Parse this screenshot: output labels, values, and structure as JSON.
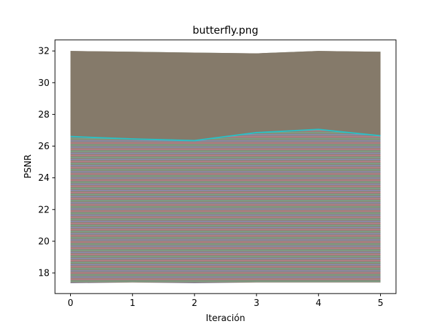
{
  "chart_data": {
    "type": "line",
    "title": "butterfly.png",
    "xlabel": "Iteración",
    "ylabel": "PSNR",
    "xlim": [
      -0.25,
      5.25
    ],
    "ylim": [
      16.7,
      32.7
    ],
    "xticks": [
      0,
      1,
      2,
      3,
      4,
      5
    ],
    "yticks": [
      18,
      20,
      22,
      24,
      26,
      28,
      30,
      32
    ],
    "grid": false,
    "legend": "none",
    "x": [
      0,
      1,
      2,
      3,
      4,
      5
    ],
    "series": [
      {
        "values": [
          26.6,
          26.45,
          26.35,
          26.85,
          27.05,
          26.65
        ],
        "color": "#2bbfc4"
      }
    ],
    "background_band": {
      "x": [
        0,
        1,
        2,
        3,
        4,
        5
      ],
      "upper": [
        32.0,
        31.95,
        31.9,
        31.85,
        32.0,
        31.95
      ],
      "lower": [
        17.35,
        17.4,
        17.35,
        17.4,
        17.4,
        17.4
      ],
      "fill_color": "#857a6a"
    }
  }
}
